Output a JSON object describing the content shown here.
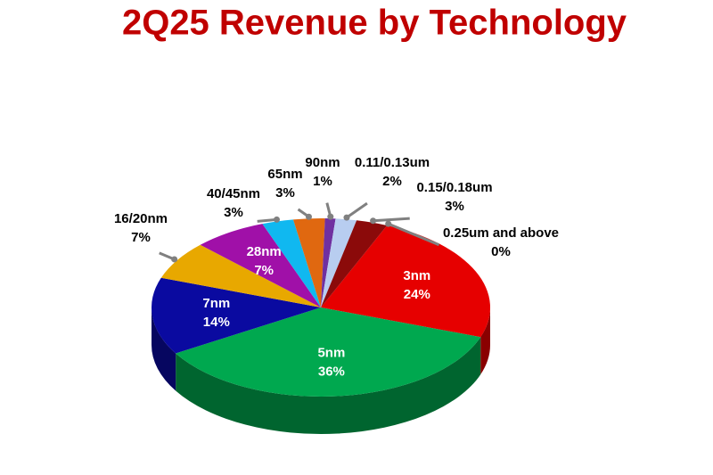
{
  "chart_data": {
    "type": "pie",
    "title": "2Q25 Revenue by Technology",
    "categories": [
      "3nm",
      "5nm",
      "7nm",
      "16/20nm",
      "28nm",
      "40/45nm",
      "65nm",
      "90nm",
      "0.11/0.13um",
      "0.15/0.18um",
      "0.25um and above"
    ],
    "values": [
      24,
      36,
      14,
      7,
      7,
      3,
      3,
      1,
      2,
      3,
      0
    ],
    "value_labels": [
      "24%",
      "36%",
      "14%",
      "7%",
      "7%",
      "3%",
      "3%",
      "1%",
      "2%",
      "3%",
      "0%"
    ],
    "colors": [
      "#e60000",
      "#00a84f",
      "#0a0aa0",
      "#e8a800",
      "#a010a8",
      "#10b8f0",
      "#e06810",
      "#7030a0",
      "#b8cdf0",
      "#8b0a0a",
      "#808080"
    ]
  }
}
